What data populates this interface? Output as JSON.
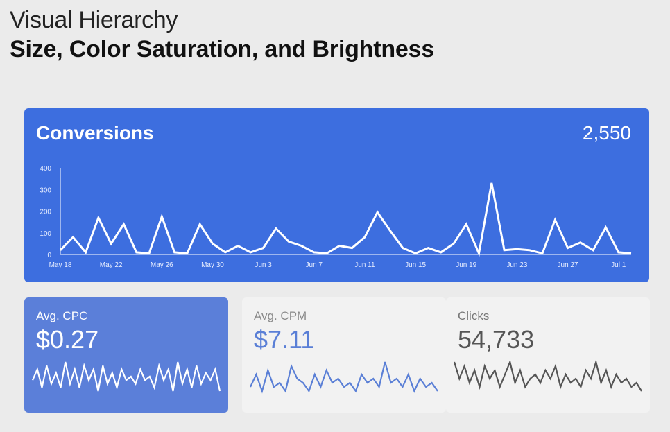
{
  "header": {
    "title": "Visual Hierarchy",
    "subtitle": "Size, Color Saturation, and Brightness"
  },
  "conversions": {
    "title": "Conversions",
    "total": "2,550",
    "color": "#3d6edf"
  },
  "cards": [
    {
      "label": "Avg. CPC",
      "value": "$0.27",
      "bg": "#5b7fd9",
      "line": "#ffffff"
    },
    {
      "label": "Avg. CPM",
      "value": "$7.11",
      "bg": "#f2f2f2",
      "line": "#5a7fd6"
    },
    {
      "label": "Clicks",
      "value": "54,733",
      "bg": "#f2f2f2",
      "line": "#555555"
    }
  ],
  "chart_data": [
    {
      "type": "line",
      "title": "Conversions",
      "ylim": [
        0,
        400
      ],
      "y_ticks": [
        "0",
        "100",
        "200",
        "300",
        "400"
      ],
      "x_ticks": [
        "May 18",
        "May 22",
        "May 26",
        "May 30",
        "Jun 3",
        "Jun 7",
        "Jun 11",
        "Jun 15",
        "Jun 19",
        "Jun 23",
        "Jun 27",
        "Jul 1"
      ],
      "grid": false,
      "series": [
        {
          "values": [
            20,
            80,
            10,
            170,
            50,
            140,
            10,
            5,
            175,
            10,
            5,
            140,
            50,
            10,
            40,
            10,
            30,
            120,
            60,
            40,
            10,
            5,
            40,
            30,
            80,
            195,
            110,
            30,
            5,
            30,
            10,
            50,
            140,
            5,
            330,
            20,
            25,
            20,
            5,
            160,
            30,
            55,
            20,
            125,
            10,
            5
          ]
        }
      ]
    },
    {
      "type": "line",
      "title": "Avg. CPC",
      "series": [
        {
          "values": [
            5,
            8,
            3,
            9,
            4,
            7,
            3,
            10,
            4,
            8,
            3,
            9,
            5,
            8,
            2,
            9,
            4,
            7,
            3,
            8,
            5,
            6,
            4,
            8,
            5,
            6,
            3,
            9,
            5,
            8,
            2,
            10,
            4,
            8,
            3,
            9,
            4,
            7,
            5,
            8,
            2
          ]
        }
      ]
    },
    {
      "type": "line",
      "title": "Avg. CPM",
      "series": [
        {
          "values": [
            3,
            6,
            2,
            7,
            3,
            4,
            2,
            8,
            5,
            4,
            2,
            6,
            3,
            7,
            4,
            5,
            3,
            4,
            2,
            6,
            4,
            5,
            3,
            9,
            4,
            5,
            3,
            6,
            2,
            5,
            3,
            4,
            2
          ]
        }
      ]
    },
    {
      "type": "line",
      "title": "Clicks",
      "series": [
        {
          "values": [
            9,
            5,
            8,
            4,
            7,
            3,
            8,
            5,
            7,
            3,
            6,
            9,
            4,
            7,
            3,
            5,
            6,
            4,
            7,
            5,
            8,
            3,
            6,
            4,
            5,
            3,
            7,
            5,
            9,
            4,
            7,
            3,
            6,
            4,
            5,
            3,
            4,
            2
          ]
        }
      ]
    }
  ]
}
